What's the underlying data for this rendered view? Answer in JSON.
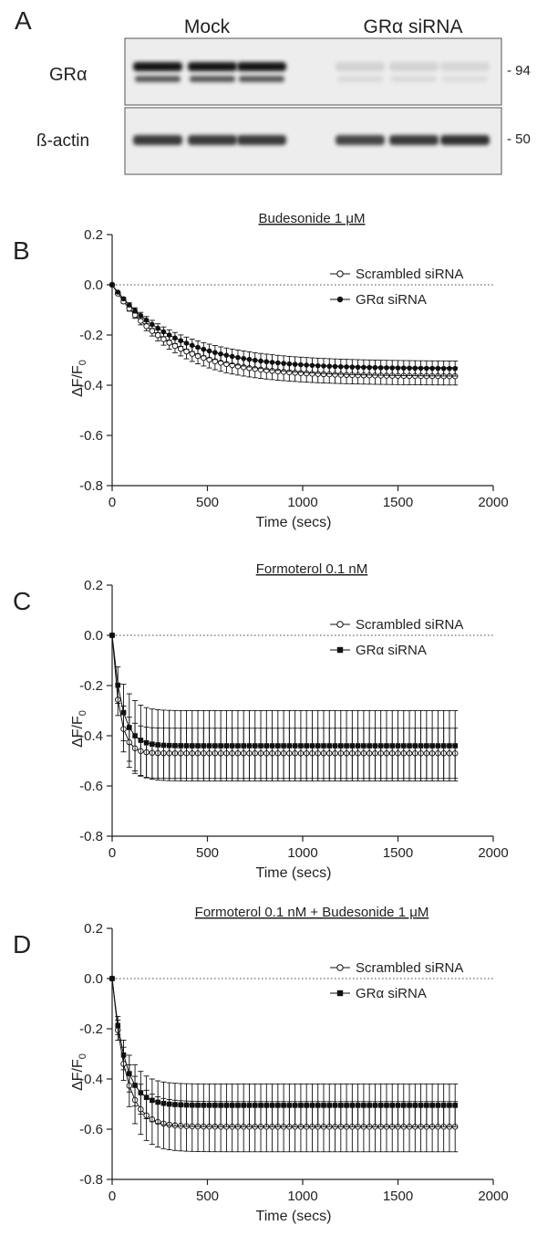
{
  "panel_a": {
    "letter": "A",
    "group_mock": "Mock",
    "group_sirna": "GRα siRNA",
    "row1_label": "GRα",
    "row2_label": "ß-actin",
    "row1_marker": "- 94",
    "row2_marker": "- 50",
    "blot_intensity": {
      "gra_mock": [
        1.0,
        1.0,
        1.0
      ],
      "gra_sirna": [
        0.12,
        0.12,
        0.1
      ],
      "actin_mock": [
        0.85,
        0.85,
        0.85
      ],
      "actin_sirna": [
        0.8,
        0.85,
        0.9
      ]
    }
  },
  "chart_data": [
    {
      "panel": "B",
      "type": "line",
      "title": "Budesonide 1 μM",
      "xlabel": "Time (secs)",
      "ylabel": "ΔF/F",
      "ylabel_subscript": "0",
      "xlim": [
        0,
        2000
      ],
      "ylim": [
        -0.8,
        0.2
      ],
      "xticks": [
        0,
        500,
        1000,
        1500,
        2000
      ],
      "yticks": [
        0.2,
        0.0,
        -0.2,
        -0.4,
        -0.6,
        -0.8
      ],
      "tick_labels_x": [
        "0",
        "500",
        "1000",
        "1500",
        "2000"
      ],
      "tick_labels_y": [
        "0.2",
        "0.0",
        "-0.2",
        "-0.4",
        "-0.6",
        "-0.8"
      ],
      "reference_line_y": 0,
      "legend_position": "top-right",
      "n_points": 61,
      "x_step": 30,
      "series": [
        {
          "name": "Scrambled siRNA",
          "marker": "open-circle",
          "plateau": -0.365,
          "tau": 300,
          "error": 0.035
        },
        {
          "name": "GRα siRNA",
          "marker": "filled-circle",
          "plateau": -0.335,
          "tau": 330,
          "error": 0.03
        }
      ]
    },
    {
      "panel": "C",
      "type": "line",
      "title": "Formoterol 0.1 nM",
      "xlabel": "Time (secs)",
      "ylabel": "ΔF/F",
      "ylabel_subscript": "0",
      "xlim": [
        0,
        2000
      ],
      "ylim": [
        -0.8,
        0.2
      ],
      "xticks": [
        0,
        500,
        1000,
        1500,
        2000
      ],
      "yticks": [
        0.2,
        0.0,
        -0.2,
        -0.4,
        -0.6,
        -0.8
      ],
      "tick_labels_x": [
        "0",
        "500",
        "1000",
        "1500",
        "2000"
      ],
      "tick_labels_y": [
        "0.2",
        "0.0",
        "-0.2",
        "-0.4",
        "-0.6",
        "-0.8"
      ],
      "reference_line_y": 0,
      "legend_position": "top-right",
      "n_points": 61,
      "x_step": 30,
      "series": [
        {
          "name": "Scrambled siRNA",
          "marker": "open-circle",
          "plateau": -0.47,
          "tau": 38,
          "error": 0.1
        },
        {
          "name": "GRα siRNA",
          "marker": "filled-square",
          "plateau": -0.44,
          "tau": 50,
          "error": 0.14
        }
      ]
    },
    {
      "panel": "D",
      "type": "line",
      "title": "Formoterol 0.1 nM + Budesonide 1 μM",
      "xlabel": "Time (secs)",
      "ylabel": "ΔF/F",
      "ylabel_subscript": "0",
      "xlim": [
        0,
        2000
      ],
      "ylim": [
        -0.8,
        0.2
      ],
      "xticks": [
        0,
        500,
        1000,
        1500,
        2000
      ],
      "yticks": [
        0.2,
        0.0,
        -0.2,
        -0.4,
        -0.6,
        -0.8
      ],
      "tick_labels_x": [
        "0",
        "500",
        "1000",
        "1500",
        "2000"
      ],
      "tick_labels_y": [
        "0.2",
        "0.0",
        "-0.2",
        "-0.4",
        "-0.6",
        "-0.8"
      ],
      "reference_line_y": 0,
      "legend_position": "top-right",
      "n_points": 61,
      "x_step": 30,
      "series": [
        {
          "name": "Scrambled siRNA",
          "marker": "open-circle",
          "plateau": -0.59,
          "tau": 70,
          "error": 0.1
        },
        {
          "name": "GRα siRNA",
          "marker": "filled-square",
          "plateau": -0.505,
          "tau": 65,
          "error": 0.085
        }
      ]
    }
  ]
}
